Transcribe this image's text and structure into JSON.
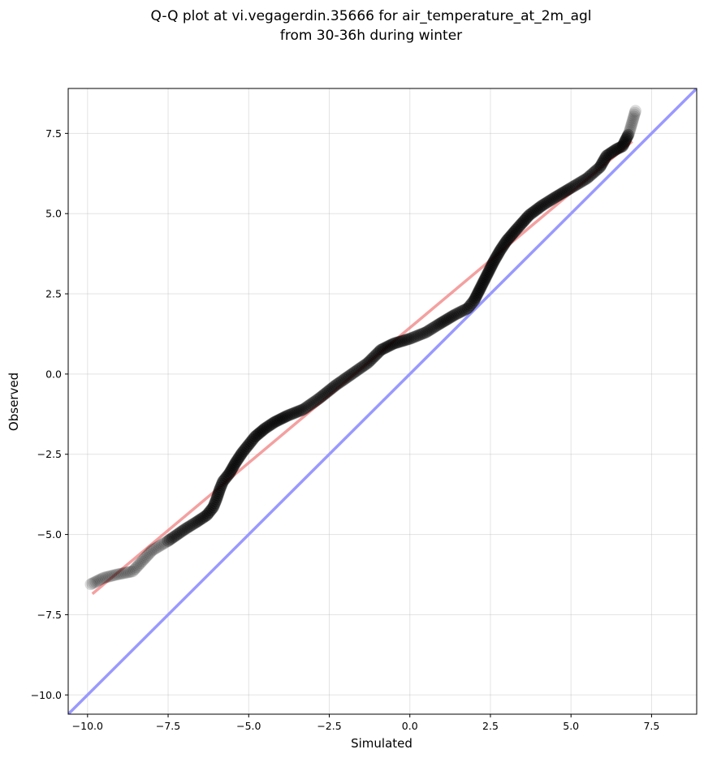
{
  "chart_data": {
    "type": "scatter",
    "title_line1": "Q-Q plot at vi.vegagerdin.35666 for air_temperature_at_2m_agl",
    "title_line2": "from 30-36h during winter",
    "xlabel": "Simulated",
    "ylabel": "Observed",
    "xlim": [
      -10.6,
      8.9
    ],
    "ylim": [
      -10.6,
      8.9
    ],
    "xticks": [
      -10.0,
      -7.5,
      -5.0,
      -2.5,
      0.0,
      2.5,
      5.0,
      7.5
    ],
    "yticks": [
      -10.0,
      -7.5,
      -5.0,
      -2.5,
      0.0,
      2.5,
      5.0,
      7.5
    ],
    "xtick_labels": [
      "−10.0",
      "−7.5",
      "−5.0",
      "−2.5",
      "0.0",
      "2.5",
      "5.0",
      "7.5"
    ],
    "ytick_labels": [
      "−10.0",
      "−7.5",
      "−5.0",
      "−2.5",
      "0.0",
      "2.5",
      "5.0",
      "7.5"
    ],
    "grid": true,
    "quantile_curve": {
      "x": [
        -9.9,
        -9.7,
        -9.5,
        -9.1,
        -8.6,
        -8.0,
        -7.5,
        -7.0,
        -6.6,
        -6.3,
        -6.1,
        -6.0,
        -5.9,
        -5.8,
        -5.6,
        -5.4,
        -5.2,
        -5.0,
        -4.8,
        -4.5,
        -4.2,
        -3.8,
        -3.3,
        -2.8,
        -2.3,
        -1.8,
        -1.3,
        -0.9,
        -0.5,
        0.0,
        0.5,
        0.9,
        1.4,
        1.8,
        2.0,
        2.2,
        2.4,
        2.6,
        2.8,
        3.0,
        3.3,
        3.7,
        4.1,
        4.5,
        5.0,
        5.5,
        5.9,
        6.1,
        6.4,
        6.6,
        6.7,
        6.8,
        6.9,
        7.0
      ],
      "y": [
        -6.55,
        -6.45,
        -6.35,
        -6.25,
        -6.15,
        -5.5,
        -5.2,
        -4.85,
        -4.6,
        -4.4,
        -4.15,
        -3.9,
        -3.6,
        -3.35,
        -3.1,
        -2.75,
        -2.45,
        -2.2,
        -1.95,
        -1.7,
        -1.5,
        -1.3,
        -1.1,
        -0.75,
        -0.35,
        0.0,
        0.35,
        0.75,
        0.95,
        1.1,
        1.3,
        1.55,
        1.85,
        2.05,
        2.3,
        2.7,
        3.1,
        3.5,
        3.85,
        4.15,
        4.5,
        4.95,
        5.25,
        5.5,
        5.8,
        6.1,
        6.45,
        6.8,
        7.0,
        7.1,
        7.3,
        7.5,
        7.85,
        8.2
      ]
    },
    "fit_line": {
      "x": [
        -9.85,
        6.9
      ],
      "y": [
        -6.85,
        7.25
      ],
      "color": "#f08080"
    },
    "identity_line": {
      "x": [
        -10.6,
        8.9
      ],
      "y": [
        -10.6,
        8.9
      ],
      "color": "#9999ff"
    },
    "point_color": "#000000"
  }
}
